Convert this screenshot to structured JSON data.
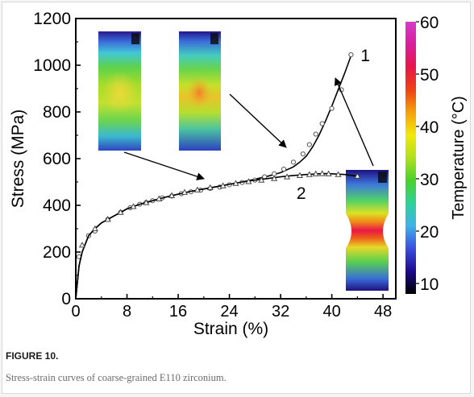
{
  "figure": {
    "label": "FIGURE 10.",
    "caption": "Stress-strain curves of coarse-grained E110 zirconium."
  },
  "chart_data": {
    "type": "line",
    "title": "",
    "xlabel": "Strain (%)",
    "ylabel": "Stress (MPa)",
    "xlim": [
      0,
      50
    ],
    "ylim": [
      0,
      1200
    ],
    "x_ticks": [
      0,
      8,
      16,
      24,
      32,
      40,
      48
    ],
    "y_ticks": [
      0,
      200,
      400,
      600,
      800,
      1000,
      1200
    ],
    "grid": false,
    "series": [
      {
        "name": "1",
        "marker": "circle",
        "x": [
          0,
          0.5,
          1,
          2,
          3,
          4,
          6,
          8,
          10,
          12,
          14,
          16,
          18,
          20,
          22,
          24,
          26,
          28,
          30,
          32,
          34,
          35,
          36,
          37,
          38,
          39,
          40,
          41,
          42,
          43
        ],
        "values": [
          0,
          140,
          200,
          270,
          300,
          325,
          355,
          385,
          405,
          420,
          435,
          448,
          460,
          470,
          480,
          490,
          500,
          512,
          525,
          540,
          565,
          585,
          610,
          650,
          700,
          760,
          825,
          895,
          965,
          1040
        ],
        "markers_x": [
          0.5,
          2,
          3,
          5,
          7,
          8.5,
          10,
          11,
          12,
          13.5,
          15,
          16.5,
          18,
          19.5,
          21,
          22.5,
          24,
          26,
          28,
          29.5,
          31,
          32.5,
          34,
          35.5,
          36.5,
          37.5,
          38.5,
          40,
          41.5,
          43
        ],
        "markers_y": [
          180,
          270,
          290,
          340,
          370,
          390,
          405,
          412,
          420,
          432,
          440,
          450,
          458,
          465,
          472,
          478,
          488,
          498,
          508,
          522,
          535,
          555,
          585,
          620,
          660,
          705,
          750,
          815,
          895,
          1045
        ]
      },
      {
        "name": "2",
        "marker": "triangle",
        "x": [
          0,
          0.5,
          1,
          2,
          3,
          4,
          6,
          8,
          10,
          12,
          14,
          16,
          18,
          20,
          22,
          24,
          26,
          28,
          30,
          32,
          34,
          36,
          38,
          39,
          40,
          42,
          44
        ],
        "values": [
          0,
          140,
          200,
          270,
          300,
          325,
          355,
          385,
          405,
          420,
          435,
          448,
          460,
          470,
          480,
          490,
          500,
          508,
          515,
          522,
          528,
          532,
          535,
          536,
          535,
          532,
          525
        ],
        "markers_x": [
          1,
          3,
          5,
          7,
          9,
          11,
          13,
          15,
          17,
          19,
          21,
          23,
          25,
          27,
          29,
          31,
          33,
          35,
          36.5,
          37.5,
          38.5,
          39.5,
          41,
          44
        ],
        "markers_y": [
          230,
          300,
          340,
          370,
          395,
          412,
          428,
          442,
          456,
          466,
          476,
          484,
          494,
          502,
          508,
          515,
          522,
          528,
          532,
          535,
          536,
          535,
          532,
          525
        ]
      }
    ],
    "colorbar": {
      "label": "Temperature (°C)",
      "ticks": [
        10,
        20,
        30,
        40,
        50,
        60
      ],
      "min": 8,
      "max": 60,
      "colors": [
        "#000000",
        "#1c0a8c",
        "#3c4ee0",
        "#3fb2e8",
        "#2fd19a",
        "#49d12a",
        "#b0e01c",
        "#f1e80c",
        "#f5a20a",
        "#ee4214",
        "#e8164a",
        "#d91e9c",
        "#d43cc8"
      ]
    }
  }
}
